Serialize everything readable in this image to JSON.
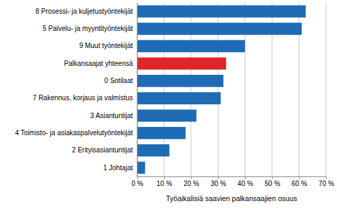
{
  "chart_data": {
    "type": "bar",
    "orientation": "horizontal",
    "x_label": "Työaikalisiä saavien palkansaajien osuus",
    "categories": [
      "8 Prosessi- ja kuljetustyöntekijät",
      "5 Palvelu- ja myyntityöntekijät",
      "9 Muut työntekijät",
      "Palkansaajat yhteensä",
      "0 Sotilaat",
      "7 Rakennus, korjaus ja valmistus",
      "3 Asiantuntijat",
      "4 Toimisto- ja asiakaspalvelutyöntekijät",
      "2 Erityisasiantuntijat",
      "1 Johtajat"
    ],
    "values": [
      62.5,
      61,
      40,
      33,
      32,
      31,
      22,
      18,
      12,
      3
    ],
    "colors": [
      "#1f6bb5",
      "#1f6bb5",
      "#1f6bb5",
      "#e0262b",
      "#1f6bb5",
      "#1f6bb5",
      "#1f6bb5",
      "#1f6bb5",
      "#1f6bb5",
      "#1f6bb5"
    ],
    "xlim": [
      0,
      70
    ],
    "xticks": [
      {
        "value": 0,
        "label": "0 %"
      },
      {
        "value": 10,
        "label": "10 %"
      },
      {
        "value": 20,
        "label": "20 %"
      },
      {
        "value": 30,
        "label": "30 %"
      },
      {
        "value": 40,
        "label": "40 %"
      },
      {
        "value": 50,
        "label": "50 %"
      },
      {
        "value": 60,
        "label": "60 %"
      },
      {
        "value": 70,
        "label": "70 %"
      }
    ],
    "grid": true
  }
}
